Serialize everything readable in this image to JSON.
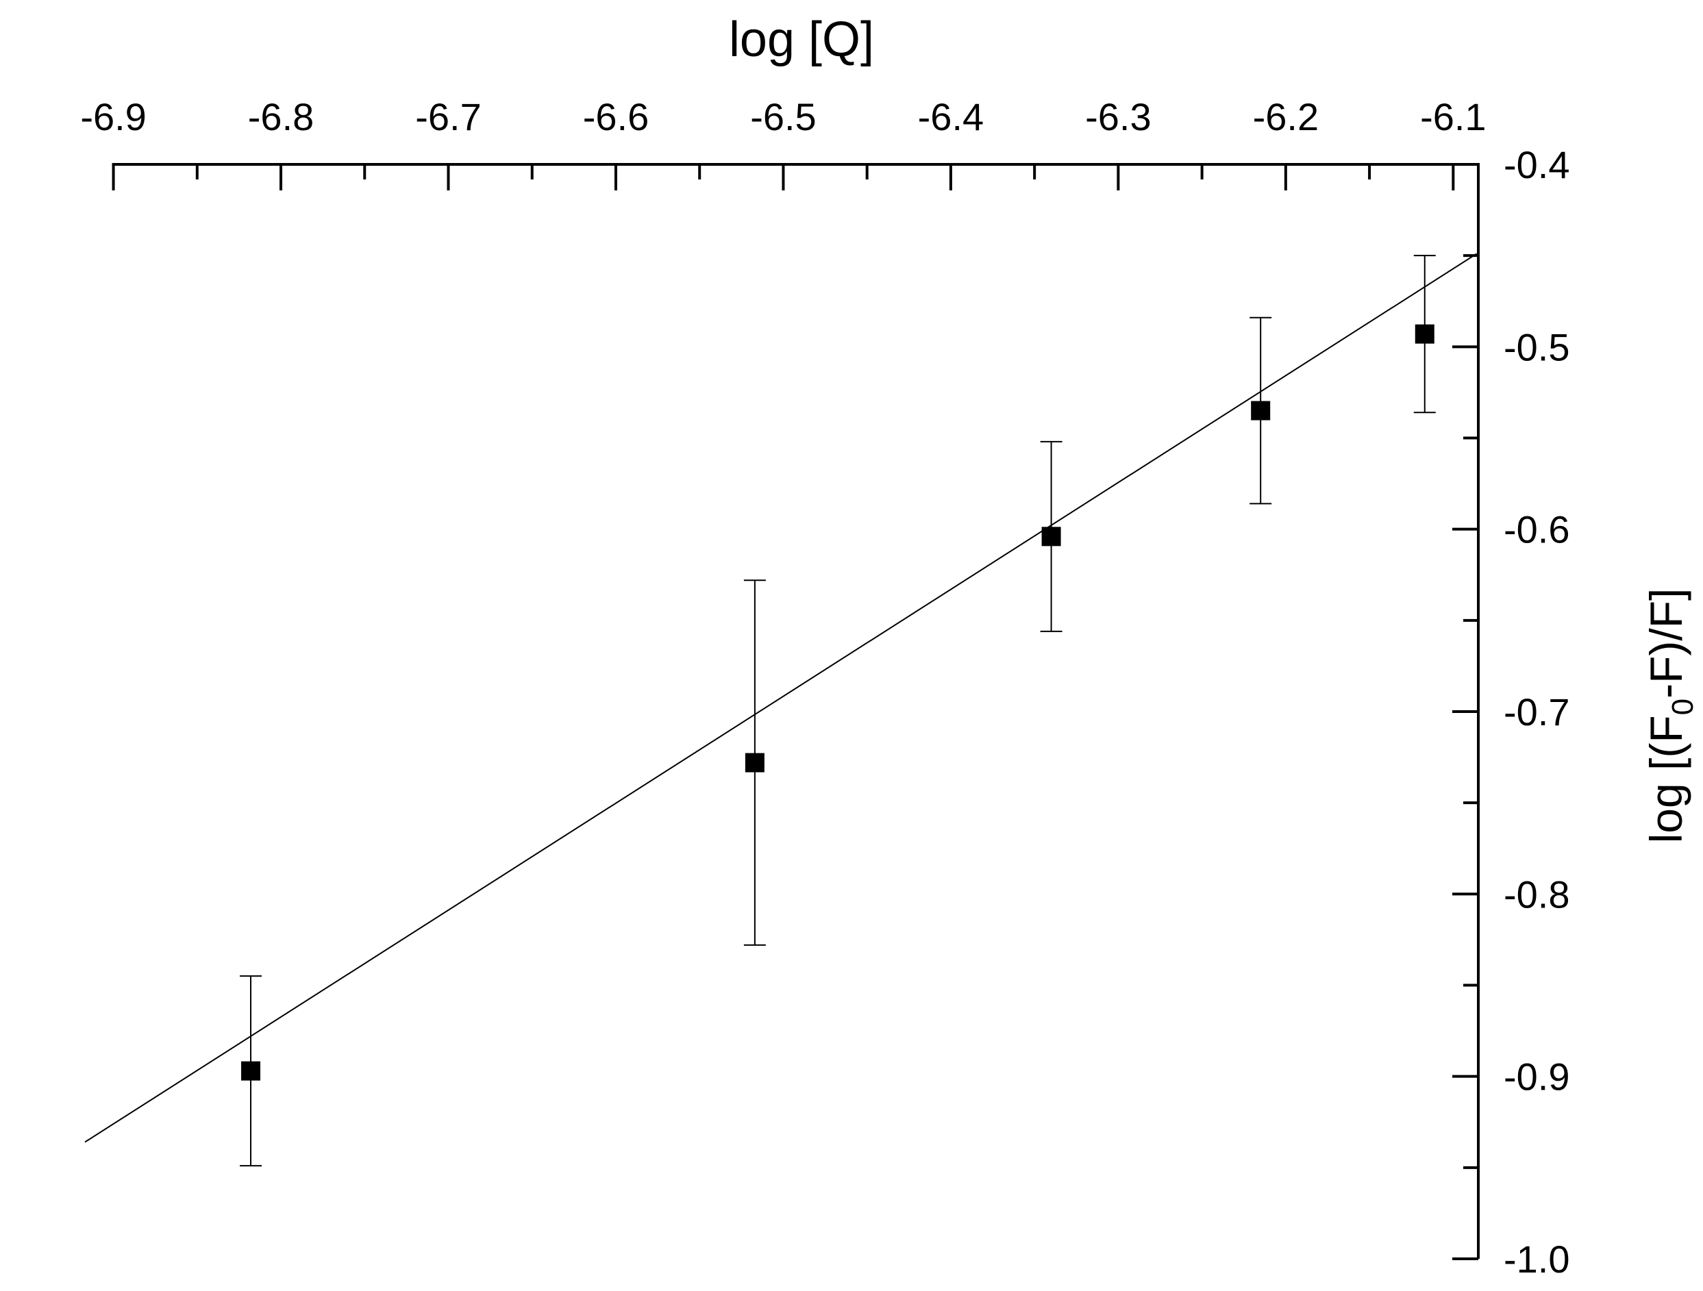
{
  "chart_data": {
    "type": "scatter",
    "xlabel": "log [Q]",
    "ylabel_main": "log [(F",
    "ylabel_sub": "0",
    "ylabel_tail": "-F)/F]",
    "xlim": [
      -6.935,
      -6.085
    ],
    "ylim": [
      -1.0,
      -0.4
    ],
    "x_ticks": [
      {
        "value": -6.9,
        "label": "-6.9"
      },
      {
        "value": -6.8,
        "label": "-6.8"
      },
      {
        "value": -6.7,
        "label": "-6.7"
      },
      {
        "value": -6.6,
        "label": "-6.6"
      },
      {
        "value": -6.5,
        "label": "-6.5"
      },
      {
        "value": -6.4,
        "label": "-6.4"
      },
      {
        "value": -6.3,
        "label": "-6.3"
      },
      {
        "value": -6.2,
        "label": "-6.2"
      },
      {
        "value": -6.1,
        "label": "-6.1"
      }
    ],
    "x_minor_ticks": [
      -6.85,
      -6.75,
      -6.65,
      -6.55,
      -6.45,
      -6.35,
      -6.25,
      -6.15
    ],
    "y_ticks": [
      {
        "value": -0.4,
        "label": "-0.4"
      },
      {
        "value": -0.5,
        "label": "-0.5"
      },
      {
        "value": -0.6,
        "label": "-0.6"
      },
      {
        "value": -0.7,
        "label": "-0.7"
      },
      {
        "value": -0.8,
        "label": "-0.8"
      },
      {
        "value": -0.9,
        "label": "-0.9"
      },
      {
        "value": -1.0,
        "label": "-1.0"
      }
    ],
    "y_minor_ticks": [
      -0.45,
      -0.55,
      -0.65,
      -0.75,
      -0.85,
      -0.95
    ],
    "points": [
      {
        "x": -6.818,
        "y": -0.897,
        "err": 0.052
      },
      {
        "x": -6.517,
        "y": -0.728,
        "err": 0.1
      },
      {
        "x": -6.34,
        "y": -0.604,
        "err": 0.052
      },
      {
        "x": -6.215,
        "y": -0.535,
        "err": 0.051
      },
      {
        "x": -6.117,
        "y": -0.493,
        "err": 0.043
      }
    ],
    "fit_line": {
      "x_start": -6.917,
      "y_start": -0.936,
      "x_end": -6.086,
      "y_end": -0.449
    },
    "grid": false,
    "marker": "square",
    "color": "#000000"
  }
}
